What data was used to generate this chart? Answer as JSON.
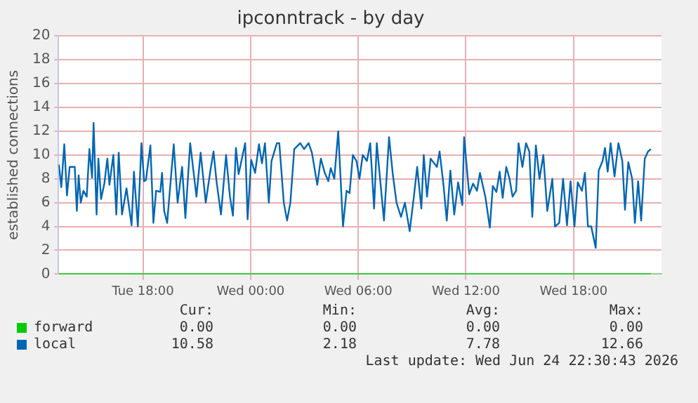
{
  "chart_data": {
    "type": "line",
    "title": "ipconntrack - by day",
    "ylabel": "established connections",
    "xlim": [
      "2026-06-23T13:18",
      "2026-06-24T22:54"
    ],
    "xticks": [
      {
        "value": "2026-06-23T18:00",
        "label": "Tue 18:00"
      },
      {
        "value": "2026-06-24T00:00",
        "label": "Wed 00:00"
      },
      {
        "value": "2026-06-24T06:00",
        "label": "Wed 06:00"
      },
      {
        "value": "2026-06-24T12:00",
        "label": "Wed 12:00"
      },
      {
        "value": "2026-06-24T18:00",
        "label": "Wed 18:00"
      }
    ],
    "ylim": [
      0,
      20
    ],
    "yticks": [
      0,
      2,
      4,
      6,
      8,
      10,
      12,
      14,
      16,
      18,
      20
    ],
    "grid": true,
    "legend": "bottom",
    "marker": "none",
    "series": [
      {
        "name": "forward",
        "color": "#00cc00",
        "x": [
          "2026-06-23T13:19",
          "2026-06-24T22:19"
        ],
        "values": [
          0,
          0
        ]
      },
      {
        "name": "local",
        "color": "#0066b3",
        "x": [
          "2026-06-23T13:19",
          "2026-06-23T13:27",
          "2026-06-23T13:37",
          "2026-06-23T13:46",
          "2026-06-23T13:55",
          "2026-06-23T14:12",
          "2026-06-23T14:19",
          "2026-06-23T14:25",
          "2026-06-23T14:32",
          "2026-06-23T14:41",
          "2026-06-23T14:52",
          "2026-06-23T15:01",
          "2026-06-23T15:10",
          "2026-06-23T15:15",
          "2026-06-23T15:25",
          "2026-06-23T15:31",
          "2026-06-23T15:40",
          "2026-06-23T15:51",
          "2026-06-23T16:01",
          "2026-06-23T16:08",
          "2026-06-23T16:21",
          "2026-06-23T16:31",
          "2026-06-23T16:39",
          "2026-06-23T16:50",
          "2026-06-23T17:05",
          "2026-06-23T17:22",
          "2026-06-23T17:30",
          "2026-06-23T17:43",
          "2026-06-23T17:55",
          "2026-06-23T18:04",
          "2026-06-23T18:10",
          "2026-06-23T18:25",
          "2026-06-23T18:35",
          "2026-06-23T18:44",
          "2026-06-23T18:58",
          "2026-06-23T19:04",
          "2026-06-23T19:11",
          "2026-06-23T19:21",
          "2026-06-23T19:43",
          "2026-06-23T19:56",
          "2026-06-23T20:11",
          "2026-06-23T20:22",
          "2026-06-23T20:38",
          "2026-06-23T20:59",
          "2026-06-23T21:13",
          "2026-06-23T21:30",
          "2026-06-23T21:45",
          "2026-06-23T21:56",
          "2026-06-23T22:06",
          "2026-06-23T22:21",
          "2026-06-23T22:38",
          "2026-06-23T22:51",
          "2026-06-23T23:01",
          "2026-06-23T23:11",
          "2026-06-23T23:20",
          "2026-06-23T23:42",
          "2026-06-23T23:50",
          "2026-06-24T00:02",
          "2026-06-24T00:15",
          "2026-06-24T00:28",
          "2026-06-24T00:38",
          "2026-06-24T00:48",
          "2026-06-24T01:01",
          "2026-06-24T01:10",
          "2026-06-24T01:28",
          "2026-06-24T01:36",
          "2026-06-24T01:51",
          "2026-06-24T02:02",
          "2026-06-24T02:13",
          "2026-06-24T02:26",
          "2026-06-24T02:46",
          "2026-06-24T02:59",
          "2026-06-24T03:14",
          "2026-06-24T03:25",
          "2026-06-24T03:43",
          "2026-06-24T03:55",
          "2026-06-24T04:08",
          "2026-06-24T04:20",
          "2026-06-24T04:28",
          "2026-06-24T04:40",
          "2026-06-24T04:53",
          "2026-06-24T05:09",
          "2026-06-24T05:21",
          "2026-06-24T05:31",
          "2026-06-24T05:42",
          "2026-06-24T05:54",
          "2026-06-24T06:04",
          "2026-06-24T06:15",
          "2026-06-24T06:29",
          "2026-06-24T06:40",
          "2026-06-24T06:53",
          "2026-06-24T07:02",
          "2026-06-24T07:13",
          "2026-06-24T07:26",
          "2026-06-24T07:43",
          "2026-06-24T07:55",
          "2026-06-24T08:08",
          "2026-06-24T08:23",
          "2026-06-24T08:36",
          "2026-06-24T08:52",
          "2026-06-24T09:06",
          "2026-06-24T09:17",
          "2026-06-24T09:31",
          "2026-06-24T09:39",
          "2026-06-24T09:50",
          "2026-06-24T10:02",
          "2026-06-24T10:23",
          "2026-06-24T10:32",
          "2026-06-24T10:45",
          "2026-06-24T10:56",
          "2026-06-24T11:08",
          "2026-06-24T11:21",
          "2026-06-24T11:34",
          "2026-06-24T11:48",
          "2026-06-24T11:54",
          "2026-06-24T12:11",
          "2026-06-24T12:24",
          "2026-06-24T12:37",
          "2026-06-24T12:47",
          "2026-06-24T13:05",
          "2026-06-24T13:20",
          "2026-06-24T13:30",
          "2026-06-24T13:42",
          "2026-06-24T13:53",
          "2026-06-24T14:03",
          "2026-06-24T14:15",
          "2026-06-24T14:26",
          "2026-06-24T14:36",
          "2026-06-24T14:48",
          "2026-06-24T14:56",
          "2026-06-24T15:09",
          "2026-06-24T15:21",
          "2026-06-24T15:32",
          "2026-06-24T15:42",
          "2026-06-24T15:54",
          "2026-06-24T16:06",
          "2026-06-24T16:19",
          "2026-06-24T16:32",
          "2026-06-24T16:49",
          "2026-06-24T16:58",
          "2026-06-24T17:12",
          "2026-06-24T17:25",
          "2026-06-24T17:38",
          "2026-06-24T17:50",
          "2026-06-24T18:03",
          "2026-06-24T18:14",
          "2026-06-24T18:28",
          "2026-06-24T18:38",
          "2026-06-24T18:48",
          "2026-06-24T18:59",
          "2026-06-24T19:14",
          "2026-06-24T19:24",
          "2026-06-24T19:37",
          "2026-06-24T19:45",
          "2026-06-24T19:54",
          "2026-06-24T20:04",
          "2026-06-24T20:17",
          "2026-06-24T20:30",
          "2026-06-24T20:43",
          "2026-06-24T20:52",
          "2026-06-24T21:03",
          "2026-06-24T21:16",
          "2026-06-24T21:25",
          "2026-06-24T21:36",
          "2026-06-24T21:46",
          "2026-06-24T21:58",
          "2026-06-24T22:09",
          "2026-06-24T22:19"
        ],
        "values": [
          9.2,
          7.3,
          10.9,
          6.6,
          9,
          9,
          5.3,
          8.3,
          6,
          7,
          6.5,
          10.5,
          8.1,
          12.7,
          5,
          9.7,
          6.3,
          7.6,
          9.7,
          7.5,
          10,
          5,
          10.2,
          5,
          7.2,
          4.1,
          8.6,
          4,
          11,
          7.8,
          7.9,
          10.8,
          4.3,
          7,
          6.9,
          8.5,
          5.3,
          4.3,
          10.9,
          6,
          9,
          4.7,
          11,
          6.5,
          10.2,
          6,
          8.6,
          10.3,
          7.8,
          5,
          10,
          6.5,
          4.9,
          10.6,
          8.4,
          11,
          4.6,
          9.6,
          8.5,
          10.9,
          9.3,
          11,
          6,
          9.5,
          11,
          11,
          6,
          4.5,
          6,
          10.5,
          11,
          10.5,
          11,
          10.2,
          7.5,
          9.7,
          8.5,
          7.8,
          8.9,
          8,
          12,
          4,
          7,
          6.8,
          10,
          9.5,
          8,
          10,
          9.5,
          11,
          5.5,
          11,
          8,
          4.5,
          11.5,
          8.5,
          6,
          4.8,
          6,
          3.6,
          6.5,
          9,
          5.5,
          10,
          6.5,
          9.7,
          9,
          10.3,
          7.5,
          4.5,
          8.7,
          5,
          7.7,
          5.8,
          11.5,
          6.7,
          7.6,
          7,
          8.5,
          6.5,
          3.9,
          7.4,
          6.9,
          8.6,
          6.4,
          9,
          8,
          6.5,
          7,
          11,
          9,
          11,
          10.3,
          4.8,
          10.8,
          8,
          10,
          5.3,
          8,
          4,
          4.3,
          8,
          4.1,
          7.8,
          4,
          7.7,
          7,
          8.5,
          4,
          4,
          2.2,
          8.7,
          9.5,
          10.6,
          8.6,
          11,
          8.2,
          11,
          9.5,
          5.4,
          9.4,
          8,
          4.3,
          7.8,
          4.5,
          9.7,
          10.3,
          10.5
        ]
      }
    ],
    "annotations": [
      "Cur:",
      "Min:",
      "Avg:",
      "Max:",
      "0.00",
      "0.00",
      "0.00",
      "0.00",
      "10.58",
      "2.18",
      "7.78",
      "12.66",
      "Last update: Wed Jun 24 22:30:43 2026"
    ]
  }
}
